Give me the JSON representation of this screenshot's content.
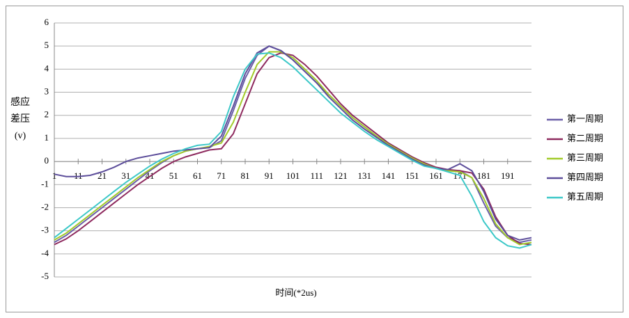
{
  "chart_data": {
    "type": "line",
    "y_label": "感应差压(v)",
    "x_label": "时间(*2us)",
    "x": [
      1,
      6,
      11,
      16,
      21,
      26,
      31,
      36,
      41,
      46,
      51,
      56,
      61,
      66,
      71,
      76,
      81,
      86,
      91,
      96,
      101,
      106,
      111,
      116,
      121,
      126,
      131,
      136,
      141,
      146,
      151,
      156,
      161,
      166,
      171,
      176,
      181,
      186,
      191,
      196,
      201
    ],
    "xlim": [
      1,
      201
    ],
    "xticks": [
      1,
      11,
      21,
      31,
      41,
      51,
      61,
      71,
      81,
      91,
      101,
      111,
      121,
      131,
      141,
      151,
      161,
      171,
      181,
      191
    ],
    "ylim": [
      -5,
      6
    ],
    "yticks": [
      -5,
      -4,
      -3,
      -2,
      -1,
      0,
      1,
      2,
      3,
      4,
      5,
      6
    ],
    "grid": true,
    "legend": "right",
    "series": [
      {
        "name": "第一周期",
        "color": "#6b5fa8",
        "values": [
          -3.5,
          -3.2,
          -2.8,
          -2.4,
          -2.0,
          -1.6,
          -1.2,
          -0.8,
          -0.4,
          -0.05,
          0.25,
          0.45,
          0.55,
          0.6,
          0.9,
          2.2,
          3.6,
          4.6,
          5.0,
          4.8,
          4.4,
          3.9,
          3.4,
          2.9,
          2.4,
          1.9,
          1.5,
          1.1,
          0.75,
          0.45,
          0.15,
          -0.1,
          -0.3,
          -0.4,
          -0.4,
          -0.7,
          -1.8,
          -2.8,
          -3.3,
          -3.5,
          -3.4
        ]
      },
      {
        "name": "第二周期",
        "color": "#8e2a5e",
        "values": [
          -3.6,
          -3.35,
          -3.0,
          -2.6,
          -2.2,
          -1.8,
          -1.4,
          -1.0,
          -0.65,
          -0.3,
          0.0,
          0.2,
          0.35,
          0.5,
          0.55,
          1.2,
          2.5,
          3.8,
          4.5,
          4.7,
          4.6,
          4.2,
          3.7,
          3.1,
          2.5,
          2.0,
          1.6,
          1.2,
          0.8,
          0.5,
          0.2,
          -0.05,
          -0.25,
          -0.35,
          -0.4,
          -0.5,
          -1.2,
          -2.4,
          -3.2,
          -3.55,
          -3.6
        ]
      },
      {
        "name": "第三周期",
        "color": "#a2cb2a",
        "values": [
          -3.4,
          -3.1,
          -2.7,
          -2.3,
          -1.9,
          -1.5,
          -1.1,
          -0.7,
          -0.35,
          0.0,
          0.25,
          0.45,
          0.55,
          0.65,
          0.8,
          1.7,
          3.0,
          4.2,
          4.75,
          4.75,
          4.5,
          4.0,
          3.5,
          2.9,
          2.4,
          1.9,
          1.5,
          1.1,
          0.75,
          0.45,
          0.15,
          -0.1,
          -0.3,
          -0.4,
          -0.45,
          -0.7,
          -1.6,
          -2.7,
          -3.3,
          -3.6,
          -3.5
        ]
      },
      {
        "name": "第四周期",
        "color": "#5c4d9a",
        "values": [
          -0.55,
          -0.65,
          -0.65,
          -0.6,
          -0.45,
          -0.25,
          0.0,
          0.15,
          0.25,
          0.35,
          0.45,
          0.5,
          0.55,
          0.6,
          1.1,
          2.4,
          3.8,
          4.7,
          5.0,
          4.8,
          4.4,
          3.9,
          3.4,
          2.8,
          2.3,
          1.8,
          1.4,
          1.05,
          0.7,
          0.4,
          0.1,
          -0.15,
          -0.3,
          -0.35,
          -0.1,
          -0.4,
          -1.3,
          -2.5,
          -3.2,
          -3.4,
          -3.3
        ]
      },
      {
        "name": "第五周期",
        "color": "#3cc8c8",
        "values": [
          -3.3,
          -2.9,
          -2.5,
          -2.1,
          -1.7,
          -1.3,
          -0.9,
          -0.55,
          -0.2,
          0.1,
          0.35,
          0.55,
          0.7,
          0.75,
          1.3,
          2.8,
          4.0,
          4.65,
          4.7,
          4.5,
          4.1,
          3.6,
          3.1,
          2.6,
          2.1,
          1.7,
          1.3,
          0.95,
          0.65,
          0.35,
          0.05,
          -0.2,
          -0.3,
          -0.45,
          -0.6,
          -1.5,
          -2.6,
          -3.3,
          -3.65,
          -3.75,
          -3.6
        ]
      }
    ]
  }
}
